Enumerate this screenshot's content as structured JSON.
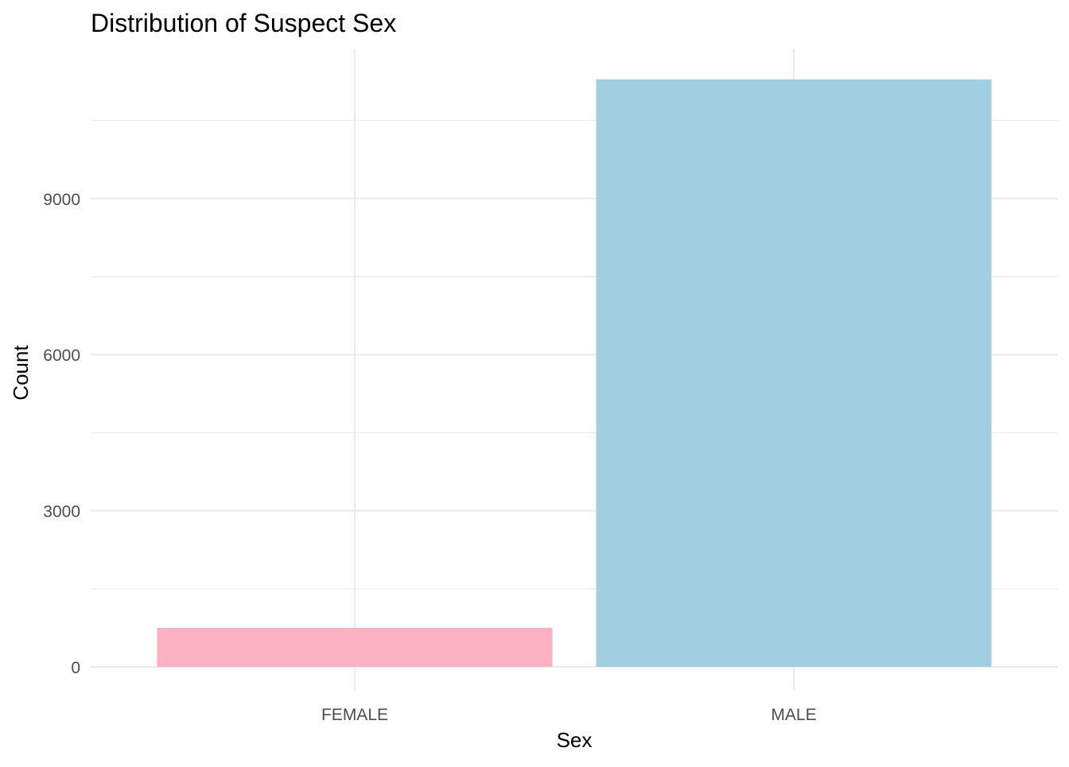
{
  "chart_data": {
    "type": "bar",
    "title": "Distribution of Suspect Sex",
    "xlabel": "Sex",
    "ylabel": "Count",
    "categories": [
      "FEMALE",
      "MALE"
    ],
    "values": [
      750,
      11290
    ],
    "colors": [
      "#FBB1C2",
      "#A0CFE0"
    ],
    "ylim": [
      0,
      11300
    ],
    "yticks": [
      0,
      3000,
      6000,
      9000
    ],
    "yticks_minor": [
      1500,
      4500,
      7500,
      10500
    ],
    "grid": true,
    "legend": "none"
  },
  "theme": {
    "grid_major_color": "#EBEBEB",
    "grid_minor_color": "#EBEBEB",
    "text_color": "#000000",
    "tick_label_color": "#4D4D4D"
  }
}
